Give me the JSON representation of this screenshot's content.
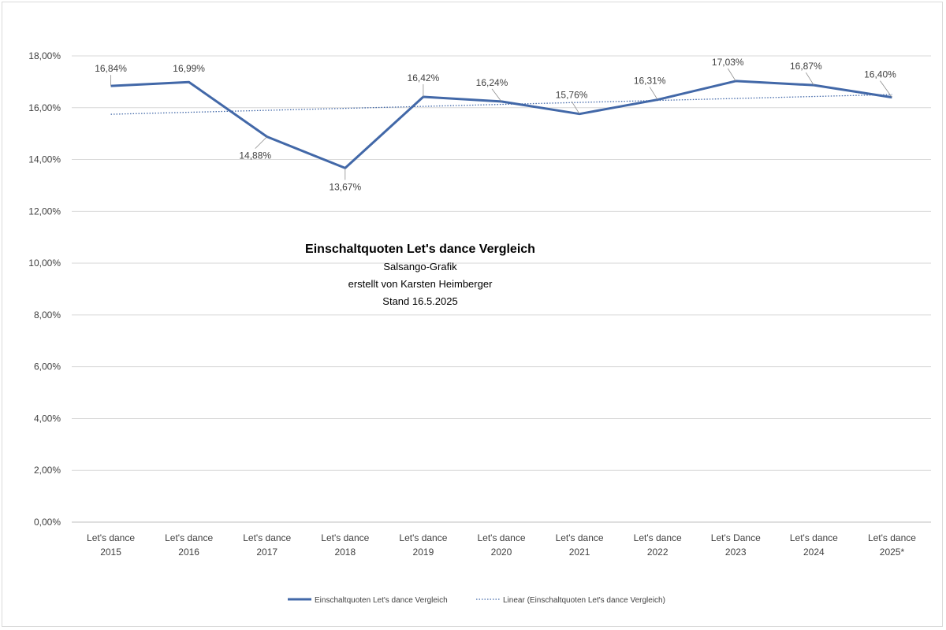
{
  "chart_data": {
    "type": "line",
    "title": "Einschaltquoten Let's dance Vergleich",
    "subtitle_lines": [
      "Salsango-Grafik",
      "erstellt von Karsten Heimberger",
      "Stand 16.5.2025"
    ],
    "categories": [
      [
        "Let's dance",
        "2015"
      ],
      [
        "Let's dance",
        "2016"
      ],
      [
        "Let's dance",
        "2017"
      ],
      [
        "Let's dance",
        "2018"
      ],
      [
        "Let's dance",
        "2019"
      ],
      [
        "Let's dance",
        "2020"
      ],
      [
        "Let's dance",
        "2021"
      ],
      [
        "Let's dance",
        "2022"
      ],
      [
        "Let's Dance",
        "2023"
      ],
      [
        "Let's dance",
        "2024"
      ],
      [
        "Let's dance",
        "2025*"
      ]
    ],
    "series": [
      {
        "name": "Einschaltquoten Let's dance Vergleich",
        "values": [
          16.84,
          16.99,
          14.88,
          13.67,
          16.42,
          16.24,
          15.76,
          16.31,
          17.03,
          16.87,
          16.4
        ],
        "labels": [
          "16,84%",
          "16,99%",
          "14,88%",
          "13,67%",
          "16,42%",
          "16,24%",
          "15,76%",
          "16,31%",
          "17,03%",
          "16,87%",
          "16,40%"
        ],
        "color": "#4268a8"
      }
    ],
    "trendline": {
      "name": "Linear (Einschaltquoten Let's dance Vergleich)",
      "type": "linear",
      "style": "dotted",
      "color": "#4268a8"
    },
    "y_ticks": [
      "0,00%",
      "2,00%",
      "4,00%",
      "6,00%",
      "8,00%",
      "10,00%",
      "12,00%",
      "14,00%",
      "16,00%",
      "18,00%"
    ],
    "ylim": [
      0,
      18
    ],
    "grid": "horizontal",
    "legend_position": "bottom"
  }
}
